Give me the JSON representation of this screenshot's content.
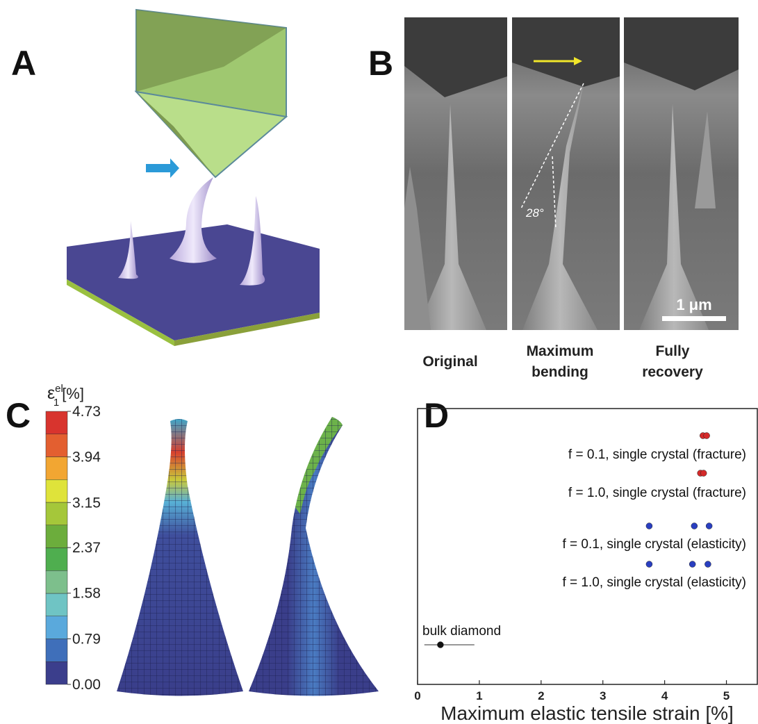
{
  "panels": {
    "A": {
      "label": "A"
    },
    "B": {
      "label": "B",
      "angle": "28°",
      "scale_bar": "1 μm",
      "captions": [
        [
          "Original"
        ],
        [
          "Maximum",
          "bending"
        ],
        [
          "Fully",
          "recovery"
        ]
      ]
    },
    "C": {
      "label": "C",
      "colorbar_title": "ε",
      "colorbar_sup": "el",
      "colorbar_sub": "1",
      "colorbar_unit": "[%]",
      "colorbar_ticks": [
        {
          "value": 0,
          "label": "0.00"
        },
        {
          "value": 0.79,
          "label": "0.79"
        },
        {
          "value": 1.58,
          "label": "1.58"
        },
        {
          "value": 2.37,
          "label": "2.37"
        },
        {
          "value": 3.15,
          "label": "3.15"
        },
        {
          "value": 3.94,
          "label": "3.94"
        },
        {
          "value": 4.73,
          "label": "4.73"
        }
      ]
    }
  },
  "chart_data": {
    "type": "scatter",
    "label": "D",
    "xlabel": "Maximum elastic tensile strain [%]",
    "xlim": [
      0,
      5.5
    ],
    "xticks": [
      0,
      1,
      2,
      3,
      4,
      5
    ],
    "series": [
      {
        "name": "f = 0.1, single crystal (fracture)",
        "color": "#d42a2a",
        "x": [
          4.62,
          4.68
        ]
      },
      {
        "name": "f = 1.0, single crystal (fracture)",
        "color": "#d42a2a",
        "x": [
          4.58,
          4.63
        ]
      },
      {
        "name": "f = 0.1, single crystal (elasticity)",
        "color": "#2a3fc0",
        "x": [
          3.75,
          4.48,
          4.72
        ]
      },
      {
        "name": "f = 1.0, single crystal (elasticity)",
        "color": "#2a3fc0",
        "x": [
          3.75,
          4.45,
          4.7
        ]
      },
      {
        "name": "bulk diamond",
        "color": "#111111",
        "x": [
          0.37
        ],
        "x_low": [
          0.11
        ],
        "x_high": [
          0.92
        ]
      }
    ]
  }
}
